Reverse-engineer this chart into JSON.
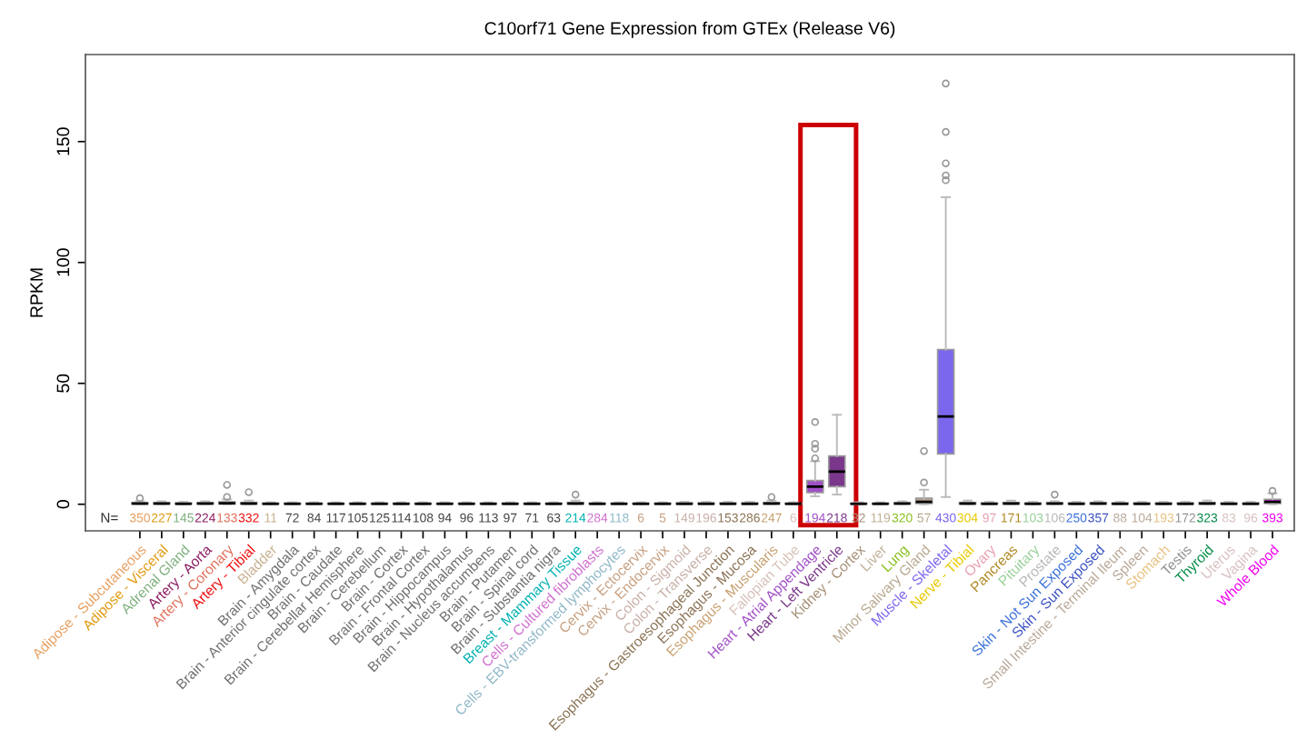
{
  "chart_data": {
    "type": "box",
    "title": "C10orf71 Gene Expression from GTEx (Release V6)",
    "ylabel": "RPKM",
    "categories": [
      "Adipose - Subcutaneous",
      "Adipose - Visceral",
      "Adrenal Gland",
      "Artery - Aorta",
      "Artery - Coronary",
      "Artery - Tibial",
      "Bladder",
      "Brain - Amygdala",
      "Brain - Anterior cingulate cortex",
      "Brain - Caudate",
      "Brain - Cerebellar Hemisphere",
      "Brain - Cerebellum",
      "Brain - Cortex",
      "Brain - Frontal Cortex",
      "Brain - Hippocampus",
      "Brain - Hypothalamus",
      "Brain - Nucleus accumbens",
      "Brain - Putamen",
      "Brain - Spinal cord",
      "Brain - Substantia nigra",
      "Breast - Mammary Tissue",
      "Cells - Cultured fibroblasts",
      "Cells - EBV-transformed lymphocytes",
      "Cervix - Ectocervix",
      "Cervix - Endocervix",
      "Colon - Sigmoid",
      "Colon - Transverse",
      "Esophagus - Gastroesophageal Junction",
      "Esophagus - Mucosa",
      "Esophagus - Muscularis",
      "Fallopian Tube",
      "Heart - Atrial Appendage",
      "Heart - Left Ventricle",
      "Kidney - Cortex",
      "Liver",
      "Lung",
      "Minor Salivary Gland",
      "Muscle - Skeletal",
      "Nerve - Tibial",
      "Ovary",
      "Pancreas",
      "Pituitary",
      "Prostate",
      "Skin - Not Sun Exposed",
      "Skin - Sun Exposed",
      "Small Intestine - Terminal Ileum",
      "Spleen",
      "Stomach",
      "Testis",
      "Thyroid",
      "Uterus",
      "Vagina",
      "Whole Blood"
    ],
    "colors": [
      "#e8a060",
      "#e09a10",
      "#7fb07f",
      "#8b1c62",
      "#e0705a",
      "#ee1010",
      "#c8b090",
      "#707070",
      "#707070",
      "#707070",
      "#707070",
      "#707070",
      "#707070",
      "#707070",
      "#707070",
      "#707070",
      "#707070",
      "#707070",
      "#707070",
      "#707070",
      "#00b0b0",
      "#d070d0",
      "#90b8c8",
      "#c8a080",
      "#c8a080",
      "#c8b0a8",
      "#c8b0a8",
      "#8b7355",
      "#8b7355",
      "#c8a070",
      "#d8c0b8",
      "#a050c8",
      "#7a378b",
      "#a89078",
      "#c0b098",
      "#8ac020",
      "#b8a890",
      "#7a67ee",
      "#e8c800",
      "#e8a0b0",
      "#b08820",
      "#98d098",
      "#b8b8b8",
      "#3a70d8",
      "#3a50c0",
      "#b8a898",
      "#b8a898",
      "#e8c080",
      "#909090",
      "#008b45",
      "#d8c0c0",
      "#d8c0c0",
      "#ee00ee"
    ],
    "boxes": [
      {
        "low": 0,
        "q1": 0.1,
        "median": 0.3,
        "q3": 0.6,
        "high": 1.2,
        "outliers": [
          2.5
        ]
      },
      {
        "low": 0,
        "q1": 0.1,
        "median": 0.3,
        "q3": 0.6,
        "high": 1.2
      },
      {
        "low": 0,
        "q1": 0.1,
        "median": 0.2,
        "q3": 0.5,
        "high": 1
      },
      {
        "low": 0,
        "q1": 0.1,
        "median": 0.3,
        "q3": 0.6,
        "high": 1.2
      },
      {
        "low": 0,
        "q1": 0.1,
        "median": 0.4,
        "q3": 1,
        "high": 2,
        "outliers": [
          3,
          8
        ]
      },
      {
        "low": 0,
        "q1": 0.1,
        "median": 0.3,
        "q3": 0.7,
        "high": 1.5,
        "outliers": [
          5
        ]
      },
      {
        "low": 0,
        "q1": 0.1,
        "median": 0.2,
        "q3": 0.4,
        "high": 0.8
      },
      {
        "low": 0,
        "q1": 0.1,
        "median": 0.2,
        "q3": 0.4,
        "high": 0.8
      },
      {
        "low": 0,
        "q1": 0.1,
        "median": 0.2,
        "q3": 0.4,
        "high": 0.8
      },
      {
        "low": 0,
        "q1": 0.1,
        "median": 0.2,
        "q3": 0.4,
        "high": 0.8
      },
      {
        "low": 0,
        "q1": 0.1,
        "median": 0.2,
        "q3": 0.4,
        "high": 0.8
      },
      {
        "low": 0,
        "q1": 0.1,
        "median": 0.2,
        "q3": 0.4,
        "high": 0.8
      },
      {
        "low": 0,
        "q1": 0.1,
        "median": 0.2,
        "q3": 0.4,
        "high": 0.8
      },
      {
        "low": 0,
        "q1": 0.1,
        "median": 0.2,
        "q3": 0.4,
        "high": 0.8
      },
      {
        "low": 0,
        "q1": 0.1,
        "median": 0.2,
        "q3": 0.4,
        "high": 0.8
      },
      {
        "low": 0,
        "q1": 0.1,
        "median": 0.2,
        "q3": 0.4,
        "high": 0.8
      },
      {
        "low": 0,
        "q1": 0.1,
        "median": 0.2,
        "q3": 0.4,
        "high": 0.8
      },
      {
        "low": 0,
        "q1": 0.1,
        "median": 0.2,
        "q3": 0.4,
        "high": 0.8
      },
      {
        "low": 0,
        "q1": 0.1,
        "median": 0.2,
        "q3": 0.4,
        "high": 0.8
      },
      {
        "low": 0,
        "q1": 0.1,
        "median": 0.2,
        "q3": 0.4,
        "high": 0.8
      },
      {
        "low": 0,
        "q1": 0.1,
        "median": 0.3,
        "q3": 0.7,
        "high": 1.5,
        "outliers": [
          4
        ]
      },
      {
        "low": 0,
        "q1": 0.1,
        "median": 0.2,
        "q3": 0.4,
        "high": 0.8
      },
      {
        "low": 0,
        "q1": 0.1,
        "median": 0.2,
        "q3": 0.4,
        "high": 0.8
      },
      {
        "low": 0,
        "q1": 0.1,
        "median": 0.2,
        "q3": 0.4,
        "high": 0.8
      },
      {
        "low": 0,
        "q1": 0.1,
        "median": 0.2,
        "q3": 0.4,
        "high": 0.8
      },
      {
        "low": 0,
        "q1": 0.1,
        "median": 0.2,
        "q3": 0.5,
        "high": 1
      },
      {
        "low": 0,
        "q1": 0.1,
        "median": 0.2,
        "q3": 0.5,
        "high": 1
      },
      {
        "low": 0,
        "q1": 0.1,
        "median": 0.2,
        "q3": 0.5,
        "high": 1
      },
      {
        "low": 0,
        "q1": 0.1,
        "median": 0.2,
        "q3": 0.5,
        "high": 1
      },
      {
        "low": 0,
        "q1": 0.1,
        "median": 0.3,
        "q3": 0.7,
        "high": 1.5,
        "outliers": [
          3
        ]
      },
      {
        "low": 0,
        "q1": 0.1,
        "median": 0.2,
        "q3": 0.4,
        "high": 0.8
      },
      {
        "low": 3.3,
        "q1": 4.8,
        "median": 7.3,
        "q3": 9.8,
        "high": 17.8,
        "outliers": [
          19,
          23,
          25,
          34
        ]
      },
      {
        "low": 4,
        "q1": 7.3,
        "median": 13.5,
        "q3": 20,
        "high": 37
      },
      {
        "low": 0,
        "q1": 0.1,
        "median": 0.2,
        "q3": 0.4,
        "high": 0.8
      },
      {
        "low": 0,
        "q1": 0.1,
        "median": 0.2,
        "q3": 0.4,
        "high": 0.8
      },
      {
        "low": 0,
        "q1": 0.1,
        "median": 0.3,
        "q3": 0.6,
        "high": 1.2
      },
      {
        "low": 0,
        "q1": 0.3,
        "median": 1,
        "q3": 2.5,
        "high": 6,
        "outliers": [
          9,
          22
        ]
      },
      {
        "low": 3,
        "q1": 20.8,
        "median": 36.3,
        "q3": 64,
        "high": 127,
        "outliers": [
          134,
          136,
          141,
          154,
          174
        ]
      },
      {
        "low": 0,
        "q1": 0.1,
        "median": 0.3,
        "q3": 0.7,
        "high": 1.5
      },
      {
        "low": 0,
        "q1": 0.1,
        "median": 0.2,
        "q3": 0.5,
        "high": 1
      },
      {
        "low": 0,
        "q1": 0.1,
        "median": 0.3,
        "q3": 0.7,
        "high": 1.5
      },
      {
        "low": 0,
        "q1": 0.1,
        "median": 0.2,
        "q3": 0.5,
        "high": 1
      },
      {
        "low": 0,
        "q1": 0.1,
        "median": 0.3,
        "q3": 0.6,
        "high": 1.2,
        "outliers": [
          4
        ]
      },
      {
        "low": 0,
        "q1": 0.1,
        "median": 0.2,
        "q3": 0.5,
        "high": 1
      },
      {
        "low": 0,
        "q1": 0.1,
        "median": 0.3,
        "q3": 0.6,
        "high": 1.2
      },
      {
        "low": 0,
        "q1": 0.1,
        "median": 0.2,
        "q3": 0.5,
        "high": 1
      },
      {
        "low": 0,
        "q1": 0.1,
        "median": 0.2,
        "q3": 0.5,
        "high": 1
      },
      {
        "low": 0,
        "q1": 0.1,
        "median": 0.2,
        "q3": 0.5,
        "high": 1
      },
      {
        "low": 0,
        "q1": 0.1,
        "median": 0.2,
        "q3": 0.5,
        "high": 1
      },
      {
        "low": 0,
        "q1": 0.1,
        "median": 0.3,
        "q3": 0.7,
        "high": 1.5
      },
      {
        "low": 0,
        "q1": 0.1,
        "median": 0.2,
        "q3": 0.5,
        "high": 1
      },
      {
        "low": 0,
        "q1": 0.1,
        "median": 0.2,
        "q3": 0.5,
        "high": 1
      },
      {
        "low": 0,
        "q1": 0.3,
        "median": 1,
        "q3": 2,
        "high": 4.5,
        "outliers": [
          5.5
        ]
      }
    ],
    "ylim": [
      -11,
      186
    ],
    "yticks": [
      0,
      50,
      100,
      150
    ],
    "grid": false,
    "annotations": [
      "N=",
      "350",
      "227",
      "145",
      "224",
      "133",
      "332",
      "11",
      "72",
      "84",
      "117",
      "105",
      "125",
      "114",
      "108",
      "94",
      "96",
      "113",
      "97",
      "71",
      "63",
      "214",
      "284",
      "118",
      "6",
      "5",
      "149",
      "196",
      "153",
      "286",
      "247",
      "6",
      "194",
      "218",
      "32",
      "119",
      "320",
      "57",
      "430",
      "304",
      "97",
      "171",
      "103",
      "106",
      "250",
      "357",
      "88",
      "104",
      "193",
      "172",
      "323",
      "83",
      "96",
      "393"
    ]
  }
}
